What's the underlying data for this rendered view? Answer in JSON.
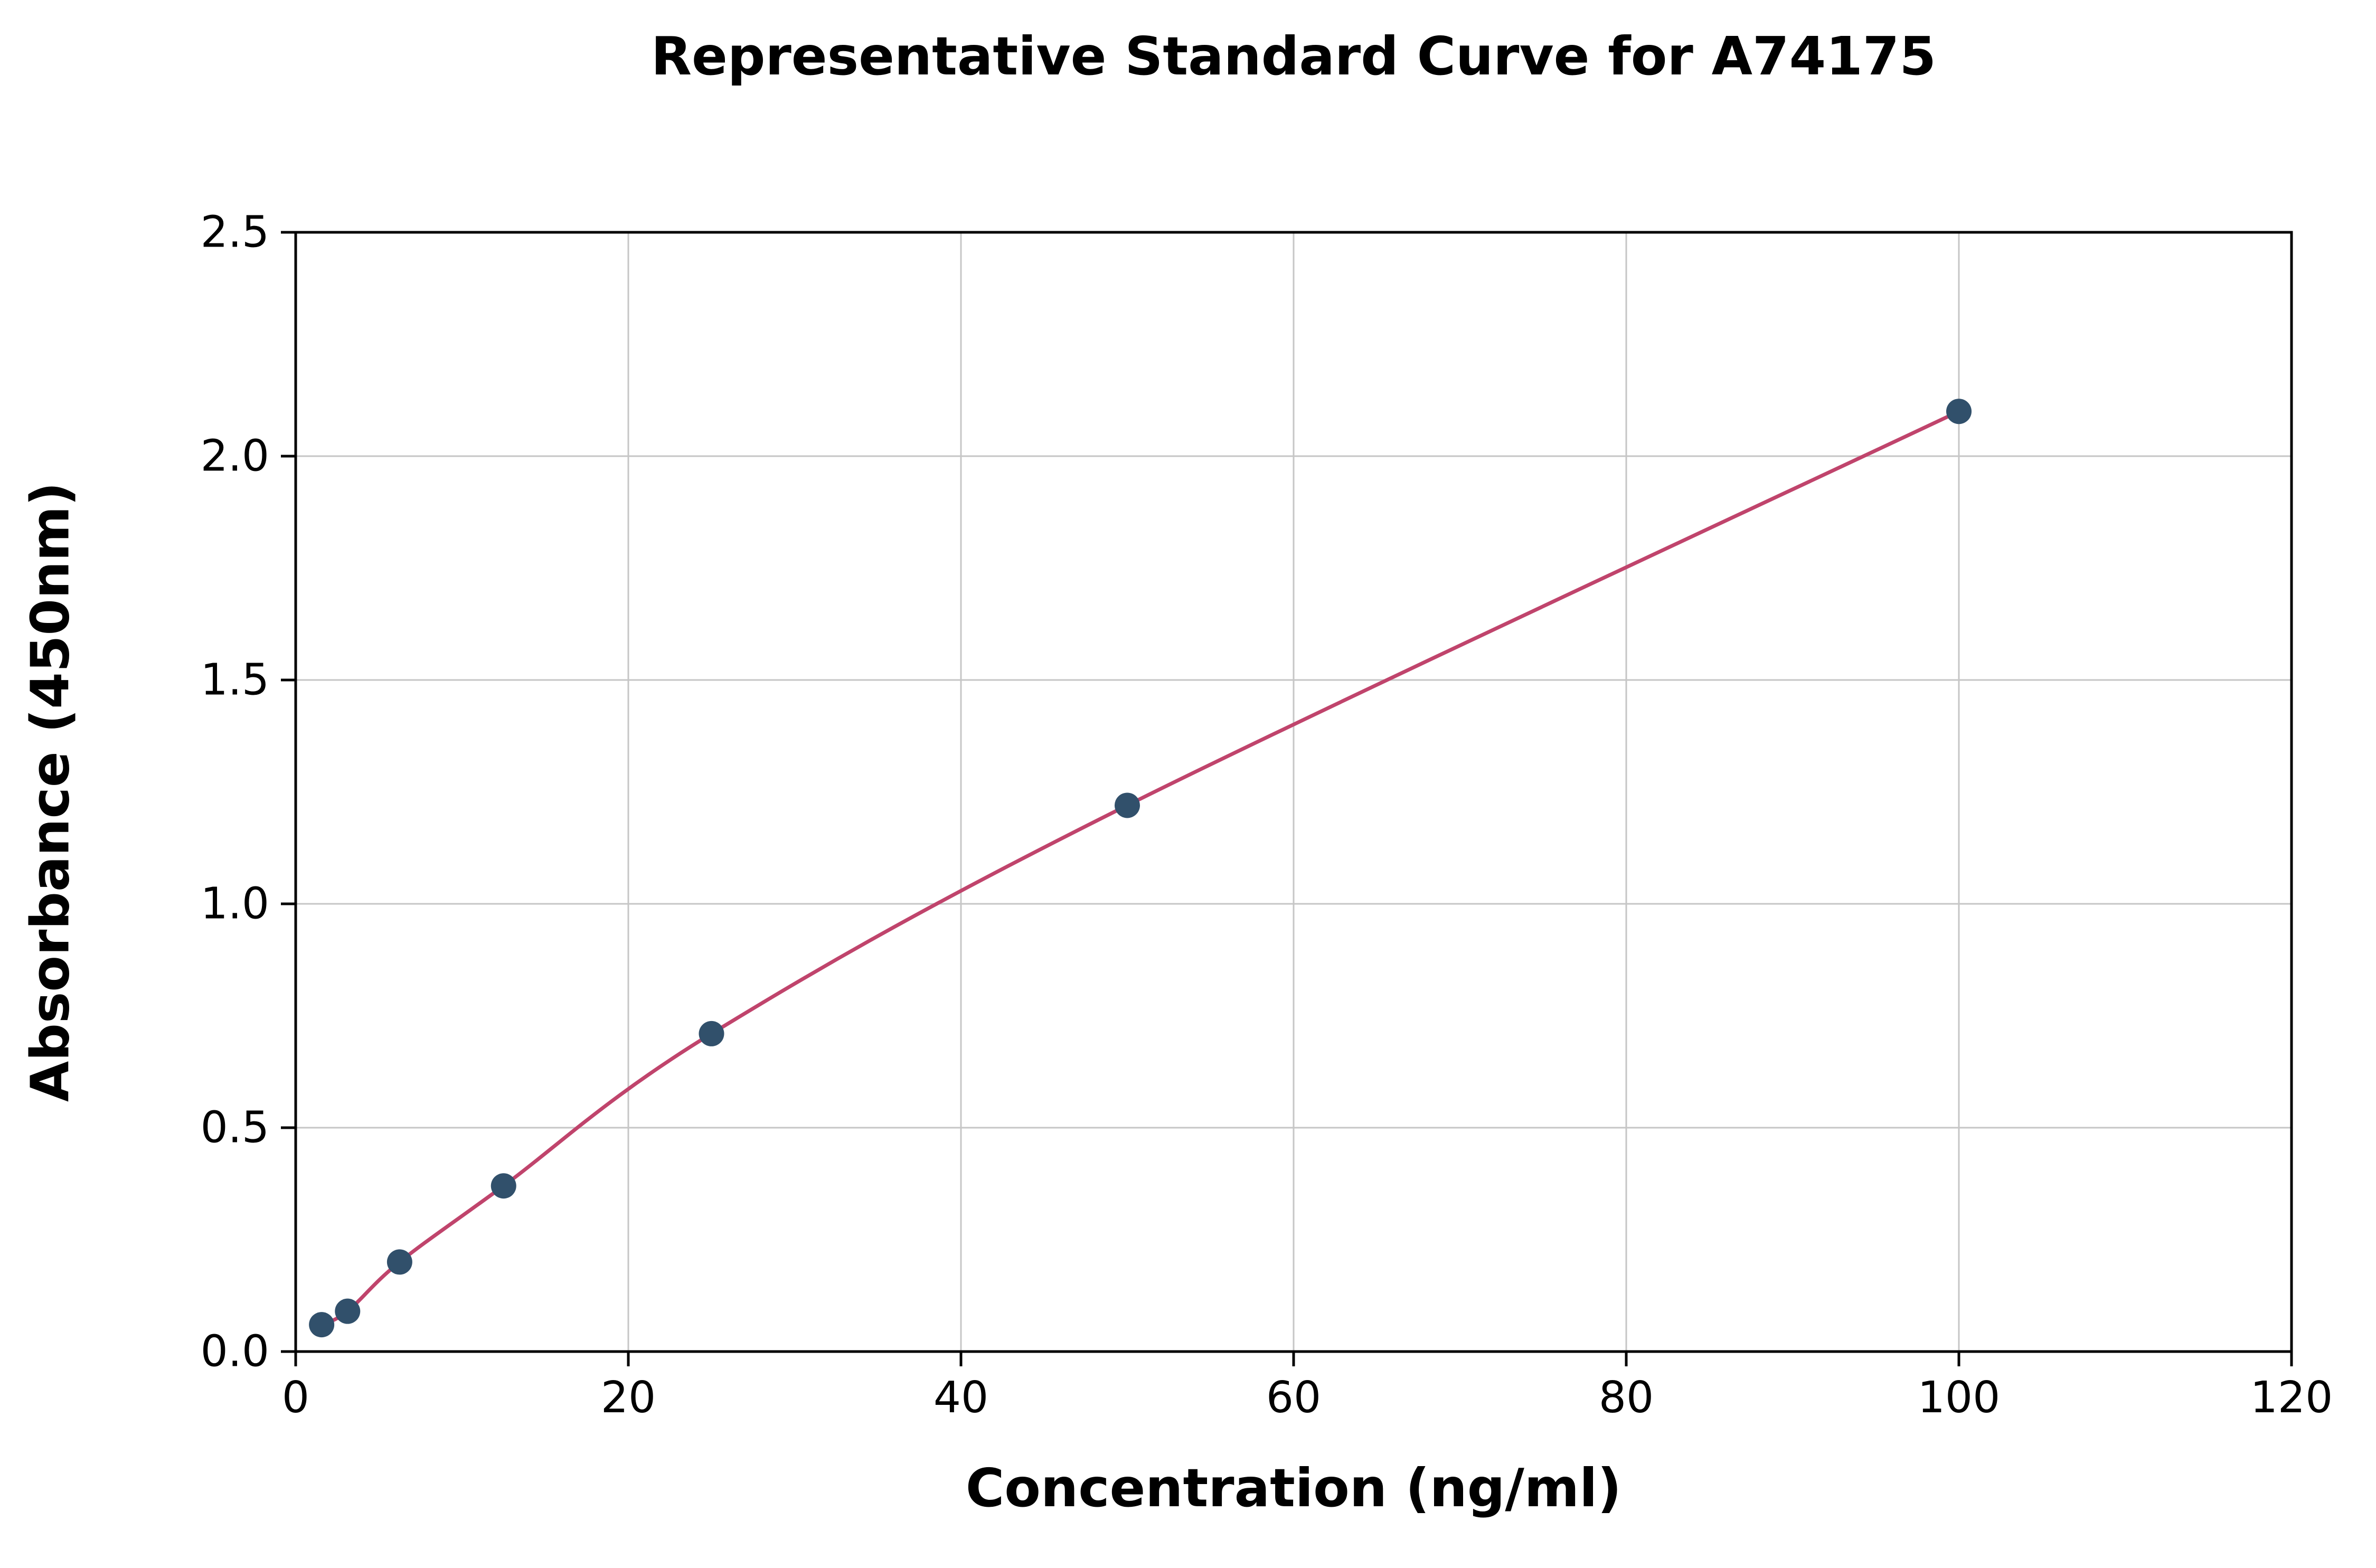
{
  "chart_data": {
    "type": "scatter",
    "title": "Representative Standard Curve for A74175",
    "xlabel": "Concentration (ng/ml)",
    "ylabel": "Absorbance (450nm)",
    "x": [
      1.56,
      3.12,
      6.25,
      12.5,
      25,
      50,
      100
    ],
    "y": [
      0.06,
      0.09,
      0.2,
      0.37,
      0.71,
      1.22,
      2.1
    ],
    "xlim": [
      0,
      120
    ],
    "ylim": [
      0,
      2.5
    ],
    "xticks": [
      0,
      20,
      40,
      60,
      80,
      100,
      120
    ],
    "xtick_labels": [
      "0",
      "20",
      "40",
      "60",
      "80",
      "100",
      "120"
    ],
    "yticks": [
      0,
      0.5,
      1.0,
      1.5,
      2.0,
      2.5
    ],
    "ytick_labels": [
      "0.0",
      "0.5",
      "1.0",
      "1.5",
      "2.0",
      "2.5"
    ],
    "grid": true,
    "legend": "none",
    "colors": {
      "curve": "#c0446c",
      "points": "#31506b",
      "grid": "#c6c6c6",
      "axis": "#000000",
      "background": "#ffffff"
    }
  }
}
